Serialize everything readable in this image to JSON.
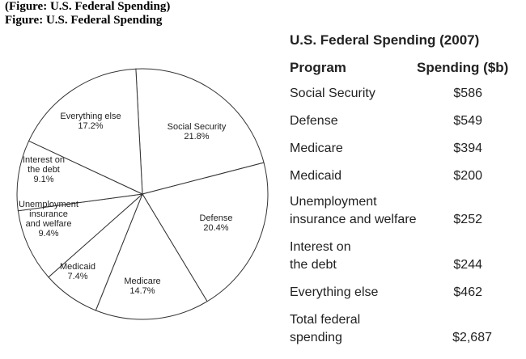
{
  "captions": [
    "(Figure: U.S. Federal Spending)",
    "Figure: U.S. Federal Spending"
  ],
  "chart_data": {
    "type": "pie",
    "slices": [
      {
        "label": [
          "Social Security",
          "21.8%"
        ],
        "value": 21.8
      },
      {
        "label": [
          "Defense",
          "20.4%"
        ],
        "value": 20.4
      },
      {
        "label": [
          "Medicare",
          "14.7%"
        ],
        "value": 14.7
      },
      {
        "label": [
          "Medicaid",
          "7.4%"
        ],
        "value": 7.4
      },
      {
        "label": [
          "Unemployment",
          "insurance",
          "and welfare",
          "9.4%"
        ],
        "value": 9.4
      },
      {
        "label": [
          "Interest on",
          "the debt",
          "9.1%"
        ],
        "value": 9.1
      },
      {
        "label": [
          "Everything else",
          "17.2%"
        ],
        "value": 17.2
      }
    ],
    "colors": {
      "fill": "#ffffff",
      "stroke": "#333333"
    }
  },
  "table": {
    "title": "U.S. Federal Spending (2007)",
    "headers": [
      "Program",
      "Spending ($b)"
    ],
    "rows": [
      {
        "program": [
          "Social Security"
        ],
        "spending": "$586"
      },
      {
        "program": [
          "Defense"
        ],
        "spending": "$549"
      },
      {
        "program": [
          "Medicare"
        ],
        "spending": "$394"
      },
      {
        "program": [
          "Medicaid"
        ],
        "spending": "$200"
      },
      {
        "program": [
          "Unemployment",
          "insurance and welfare"
        ],
        "spending": "$252"
      },
      {
        "program": [
          "Interest on",
          "the debt"
        ],
        "spending": "$244"
      },
      {
        "program": [
          "Everything else"
        ],
        "spending": "$462"
      },
      {
        "program": [
          "Total federal",
          "spending"
        ],
        "spending": "$2,687"
      }
    ]
  }
}
